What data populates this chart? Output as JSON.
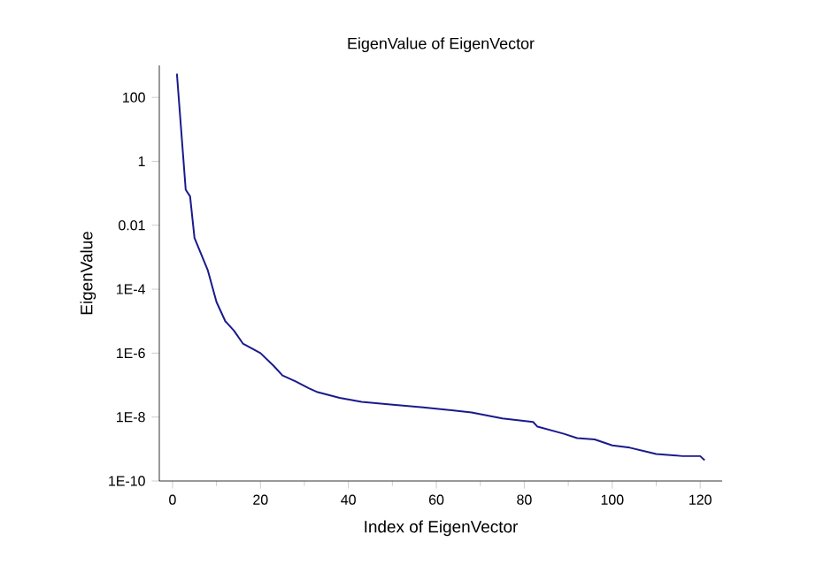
{
  "chart_data": {
    "type": "line",
    "title": "EigenValue of EigenVector",
    "xlabel": "Index of EigenVector",
    "ylabel": "EigenValue",
    "log": "y",
    "marker": "none",
    "line_style": "solid",
    "x": [
      1,
      3,
      4,
      5,
      8,
      10,
      12,
      14,
      16,
      20,
      23,
      25,
      28,
      31,
      33,
      38,
      43,
      49,
      57,
      68,
      75,
      82,
      83,
      89,
      92,
      96,
      100,
      104,
      110,
      116,
      120,
      121
    ],
    "series": [
      {
        "color": "#1a1a8c",
        "values": [
          550,
          0.13,
          0.08,
          0.004,
          0.0004,
          4e-05,
          1e-05,
          5e-06,
          2e-06,
          1e-06,
          4e-07,
          2e-07,
          1.3e-07,
          8e-08,
          6e-08,
          4e-08,
          3e-08,
          2.5e-08,
          2e-08,
          1.4e-08,
          9e-09,
          7e-09,
          5e-09,
          3e-09,
          2.2e-09,
          2e-09,
          1.3e-09,
          1.1e-09,
          7e-10,
          6e-10,
          6e-10,
          4.5e-10
        ]
      }
    ],
    "xlim": [
      -3,
      125
    ],
    "ylim": [
      1e-10,
      1000
    ],
    "xticks": [
      0,
      20,
      40,
      60,
      80,
      100,
      120
    ],
    "yticks": [
      {
        "value": 100,
        "label": "100"
      },
      {
        "value": 1,
        "label": "1"
      },
      {
        "value": 0.01,
        "label": "0.01"
      },
      {
        "value": 0.0001,
        "label": "1E-4"
      },
      {
        "value": 1e-06,
        "label": "1E-6"
      },
      {
        "value": 1e-08,
        "label": "1E-8"
      },
      {
        "value": 1e-10,
        "label": "1E-10"
      }
    ]
  }
}
